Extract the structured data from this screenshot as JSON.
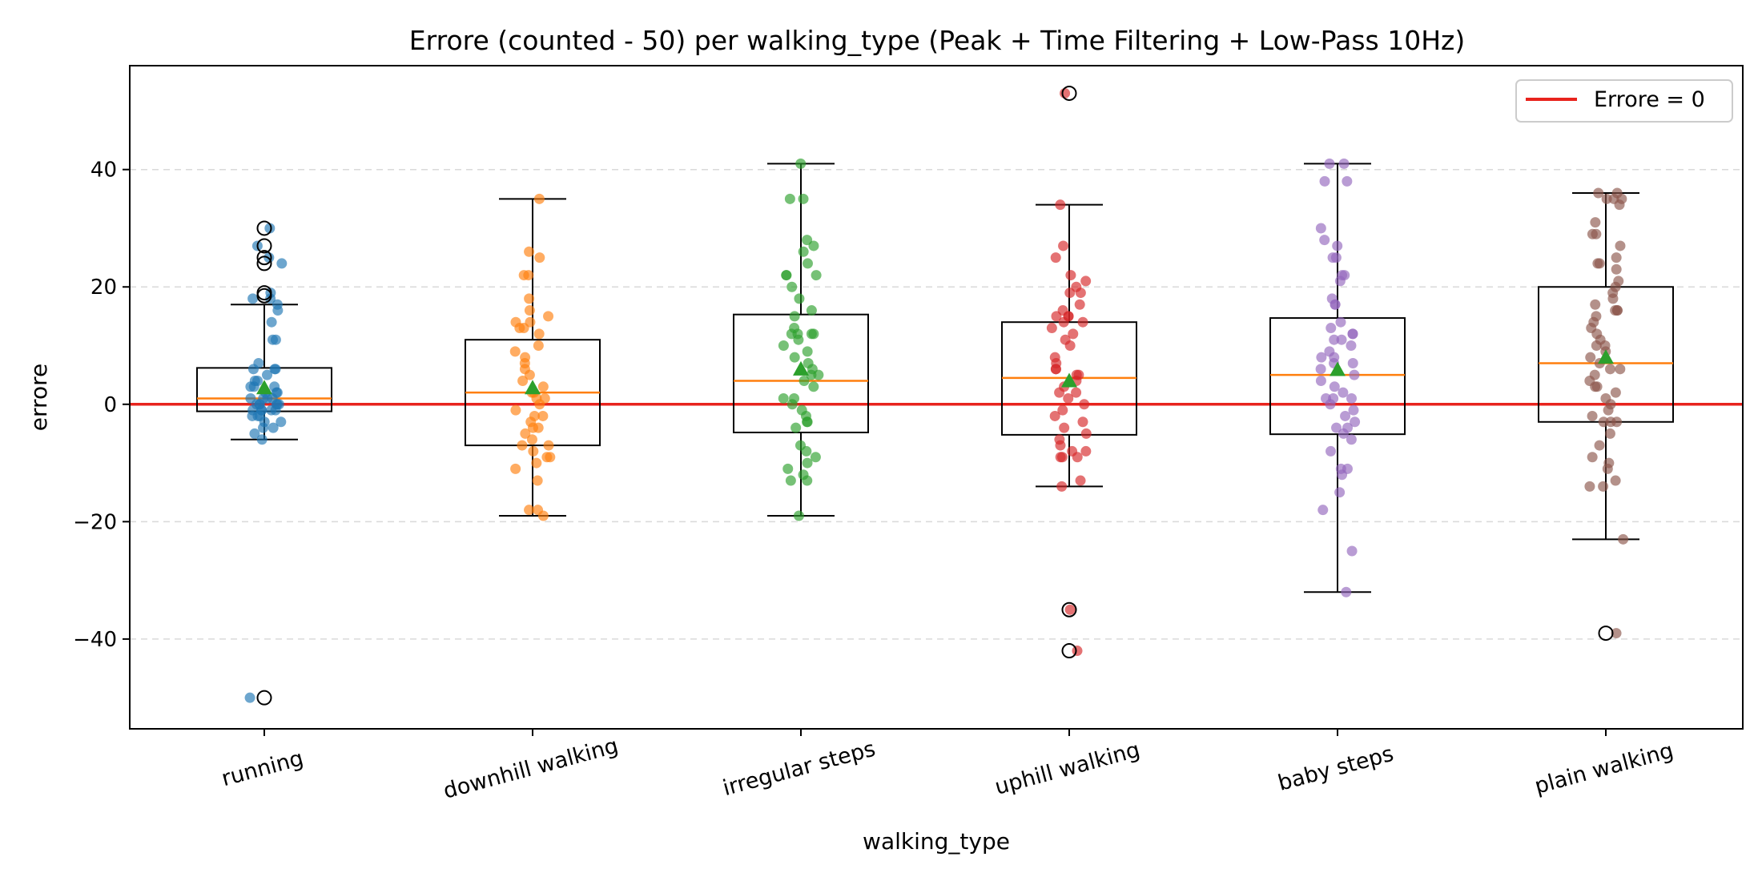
{
  "chart_data": {
    "type": "box",
    "title": "Errore (counted - 50) per walking_type (Peak + Time Filtering + Low-Pass 10Hz)",
    "xlabel": "walking_type",
    "ylabel": "errore",
    "ylim": [
      -55.3,
      57.7
    ],
    "yticks": [
      -40,
      -20,
      0,
      20,
      40
    ],
    "ytick_labels": [
      "−40",
      "−20",
      "0",
      "20",
      "40"
    ],
    "grid": "y-dashed",
    "legend": {
      "position": "top-right",
      "entries": [
        {
          "label": "Errore = 0",
          "color": "#e8231d"
        }
      ]
    },
    "reference_line": {
      "y": 0,
      "color": "#e8231d"
    },
    "categories": [
      "running",
      "downhill walking",
      "irregular steps",
      "uphill walking",
      "baby steps",
      "plain walking"
    ],
    "colors": [
      "#1f77b4",
      "#ff7f0e",
      "#2ca02c",
      "#d62728",
      "#9467bd",
      "#8c564b"
    ],
    "median_color": "#ff7f0e",
    "mean_color": "#2ca02c",
    "boxes": [
      {
        "q1": -1.2,
        "median": 1,
        "q3": 6.2,
        "whisker_low": -6,
        "whisker_high": 17,
        "mean": 2.8,
        "outliers": [
          30,
          27,
          25,
          24,
          19,
          18.5,
          -50
        ]
      },
      {
        "q1": -7,
        "median": 2,
        "q3": 11,
        "whisker_low": -19,
        "whisker_high": 35,
        "mean": 2.8,
        "outliers": []
      },
      {
        "q1": -4.8,
        "median": 4,
        "q3": 15.3,
        "whisker_low": -19,
        "whisker_high": 41,
        "mean": 6,
        "outliers": []
      },
      {
        "q1": -5.2,
        "median": 4.5,
        "q3": 14,
        "whisker_low": -14,
        "whisker_high": 34,
        "mean": 4,
        "outliers": [
          53,
          -35,
          -42
        ]
      },
      {
        "q1": -5.1,
        "median": 5,
        "q3": 14.7,
        "whisker_low": -32,
        "whisker_high": 41,
        "mean": 5.9,
        "outliers": []
      },
      {
        "q1": -3,
        "median": 7,
        "q3": 20,
        "whisker_low": -23,
        "whisker_high": 36,
        "mean": 8,
        "outliers": [
          -39
        ]
      }
    ],
    "points": [
      [
        30,
        27,
        25,
        24,
        19,
        18,
        18,
        16,
        14,
        11,
        11,
        7,
        6,
        6,
        5,
        4,
        3,
        3,
        2,
        2,
        1,
        1,
        1,
        0,
        0,
        0,
        0,
        0,
        -1,
        -1,
        -1,
        -1,
        -2,
        -2,
        -2,
        -3,
        -3,
        -4,
        -4,
        -5,
        -6,
        17,
        6,
        4,
        2,
        0,
        -1,
        3,
        1,
        -50
      ],
      [
        35,
        26,
        25,
        22,
        22,
        18,
        16,
        15,
        14,
        14,
        13,
        13,
        10,
        9,
        8,
        7,
        5,
        4,
        3,
        2,
        2,
        1,
        1,
        0,
        -1,
        -2,
        -3,
        -4,
        -4,
        -5,
        -6,
        -7,
        -7,
        -8,
        -9,
        -10,
        -11,
        -13,
        -18,
        -18,
        -19,
        12,
        6,
        -2,
        -9
      ],
      [
        41,
        35,
        35,
        28,
        27,
        26,
        24,
        22,
        22,
        22,
        20,
        18,
        16,
        13,
        12,
        12,
        12,
        12,
        11,
        10,
        8,
        7,
        6,
        5,
        5,
        4,
        3,
        1,
        1,
        0,
        -1,
        -2,
        -3,
        -3,
        -7,
        -8,
        -9,
        -10,
        -11,
        -12,
        -13,
        -13,
        -19,
        15,
        9,
        -4
      ],
      [
        53,
        34,
        27,
        25,
        22,
        21,
        20,
        19,
        19,
        17,
        16,
        15,
        15,
        15,
        14,
        14,
        13,
        12,
        11,
        8,
        7,
        6,
        6,
        5,
        5,
        4,
        3,
        2,
        1,
        0,
        -1,
        -2,
        -3,
        -4,
        -5,
        -6,
        -7,
        -8,
        -8,
        -9,
        -9,
        -9,
        -13,
        -14,
        -35,
        -42,
        10,
        2
      ],
      [
        41,
        41,
        38,
        38,
        30,
        28,
        27,
        25,
        25,
        22,
        22,
        21,
        18,
        17,
        17,
        14,
        13,
        12,
        12,
        11,
        11,
        10,
        9,
        8,
        8,
        7,
        7,
        5,
        4,
        3,
        1,
        1,
        1,
        0,
        -1,
        -2,
        -3,
        -4,
        -4,
        -5,
        -6,
        -8,
        -11,
        -11,
        -12,
        -15,
        -18,
        -25,
        -32,
        6,
        2
      ],
      [
        36,
        36,
        35,
        35,
        35,
        34,
        31,
        29,
        29,
        27,
        25,
        24,
        24,
        21,
        20,
        19,
        18,
        17,
        16,
        16,
        16,
        15,
        14,
        13,
        12,
        11,
        10,
        9,
        8,
        7,
        6,
        6,
        5,
        4,
        3,
        2,
        1,
        0,
        -1,
        -2,
        -3,
        -3,
        -3,
        -5,
        -7,
        -9,
        -10,
        -11,
        -13,
        -14,
        -14,
        -23,
        -39,
        23,
        10,
        3
      ]
    ]
  }
}
